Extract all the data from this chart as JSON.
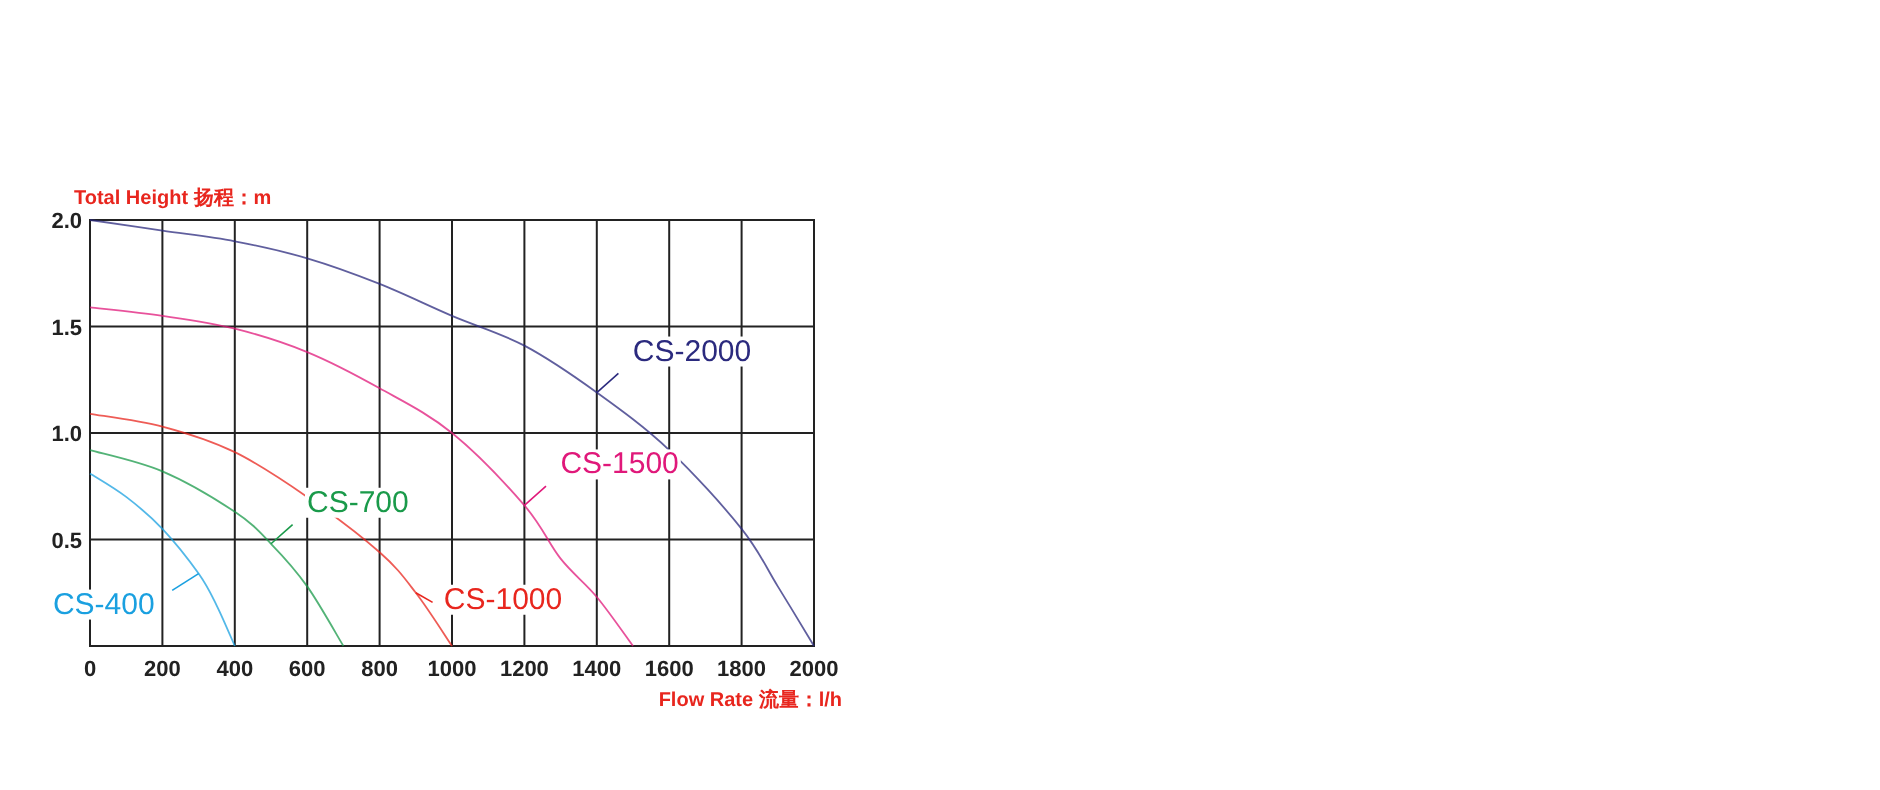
{
  "chart_data": {
    "type": "line",
    "ylabel": "Total Height 扬程：m",
    "xlabel": "Flow Rate 流量：l/h",
    "xlim": [
      0,
      2000
    ],
    "ylim": [
      0,
      2.0
    ],
    "xticks": [
      0,
      200,
      400,
      600,
      800,
      1000,
      1200,
      1400,
      1600,
      1800,
      2000
    ],
    "yticks": [
      {
        "value": 0,
        "label": null
      },
      {
        "value": 0.5,
        "label": "0.5"
      },
      {
        "value": 1.0,
        "label": "1.0"
      },
      {
        "value": 1.5,
        "label": "1.5"
      },
      {
        "value": 2.0,
        "label": "2.0"
      }
    ],
    "grid": true,
    "marker": "none",
    "line_style": "solid",
    "series": [
      {
        "name": "CS-2000",
        "color": "#2b2a7e",
        "x": [
          0,
          200,
          400,
          600,
          800,
          1000,
          1200,
          1400,
          1600,
          1800,
          1900,
          2000
        ],
        "values": [
          2.0,
          1.95,
          1.9,
          1.82,
          1.7,
          1.55,
          1.41,
          1.19,
          0.92,
          0.55,
          0.28,
          0
        ]
      },
      {
        "name": "CS-1500",
        "color": "#e0187a",
        "x": [
          0,
          200,
          400,
          600,
          800,
          1000,
          1200,
          1300,
          1400,
          1500
        ],
        "values": [
          1.59,
          1.55,
          1.49,
          1.38,
          1.21,
          1.0,
          0.66,
          0.41,
          0.23,
          0
        ]
      },
      {
        "name": "CS-1000",
        "color": "#e8261e",
        "x": [
          0,
          200,
          400,
          600,
          800,
          900,
          1000
        ],
        "values": [
          1.09,
          1.03,
          0.91,
          0.7,
          0.44,
          0.25,
          0
        ]
      },
      {
        "name": "CS-700",
        "color": "#1a9a4a",
        "x": [
          0,
          200,
          400,
          500,
          600,
          700
        ],
        "values": [
          0.92,
          0.82,
          0.63,
          0.48,
          0.28,
          0
        ]
      },
      {
        "name": "CS-400",
        "color": "#1aa0e0",
        "x": [
          0,
          100,
          200,
          300,
          350,
          400
        ],
        "values": [
          0.81,
          0.7,
          0.55,
          0.34,
          0.19,
          0
        ]
      }
    ]
  }
}
